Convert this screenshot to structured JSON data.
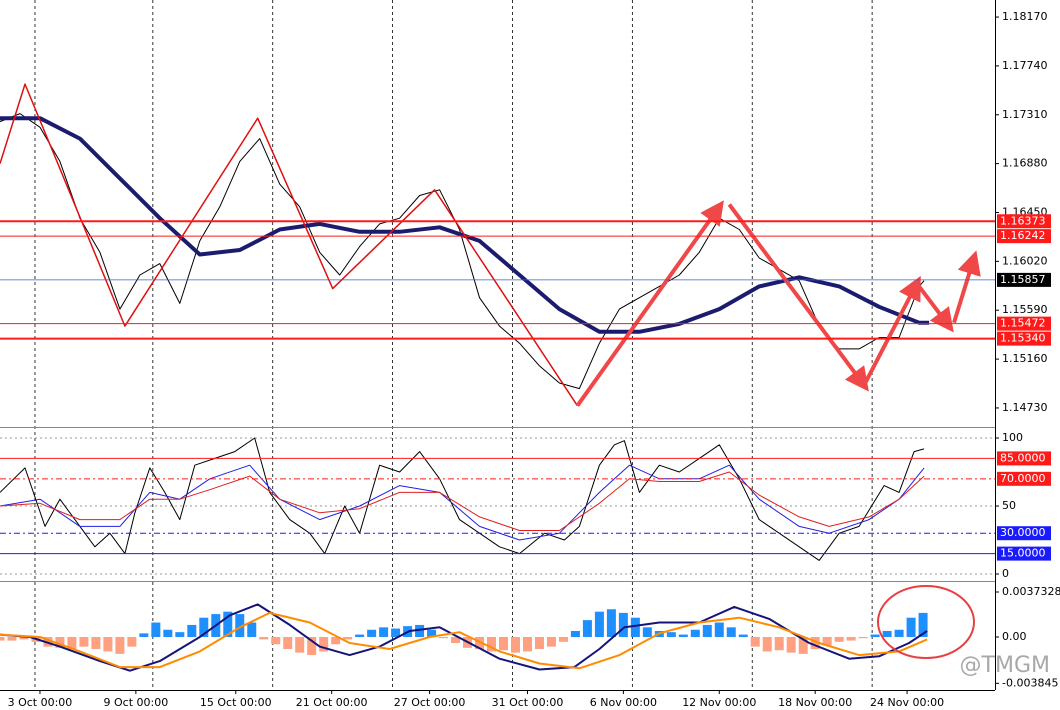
{
  "chart_data": [
    {
      "type": "line",
      "ylim": [
        1.1458,
        1.1832
      ],
      "yticks": [
        {
          "value": 1.1817,
          "label": "1.18170"
        },
        {
          "value": 1.1774,
          "label": "1.17740"
        },
        {
          "value": 1.1731,
          "label": "1.17310"
        },
        {
          "value": 1.1688,
          "label": "1.16880"
        },
        {
          "value": 1.1645,
          "label": "1.16450"
        },
        {
          "value": 1.1602,
          "label": "1.16020"
        },
        {
          "value": 1.1559,
          "label": "1.15590"
        },
        {
          "value": 1.1516,
          "label": "1.15160"
        },
        {
          "value": 1.1473,
          "label": "1.14730"
        }
      ],
      "levels": [
        {
          "value": 1.16373,
          "color": "#ff1a1a",
          "width": 2,
          "box": "#ff1a1a"
        },
        {
          "value": 1.16242,
          "color": "#ff1a1a",
          "width": 1,
          "box": "#ff1a1a"
        },
        {
          "value": 1.15857,
          "color": "#3060d0",
          "width": 0.7,
          "box": "#000000"
        },
        {
          "value": 1.15472,
          "color": "#ff1a1a",
          "width": 1,
          "box": "#ff1a1a"
        },
        {
          "value": 1.1534,
          "label": "1.15340",
          "color": "#ff1a1a",
          "width": 2,
          "box": "#ff1a1a"
        }
      ],
      "series": [
        {
          "color": "#000000",
          "width": 1,
          "x": [
            0,
            5,
            10,
            15,
            20,
            25,
            30,
            35,
            40,
            45,
            50,
            55,
            60,
            65,
            70,
            75,
            80,
            85,
            90,
            95,
            100,
            105,
            110,
            115,
            120,
            125,
            130,
            135,
            140,
            145,
            150,
            155,
            160,
            165,
            170,
            175,
            180,
            185,
            190,
            195,
            200,
            205,
            210,
            215,
            220,
            225,
            230,
            231.25
          ],
          "values": [
            1.1725,
            1.1732,
            1.172,
            1.169,
            1.164,
            1.161,
            1.156,
            1.159,
            1.16,
            1.1565,
            1.162,
            1.165,
            1.169,
            1.171,
            1.167,
            1.165,
            1.161,
            1.159,
            1.1615,
            1.1635,
            1.164,
            1.166,
            1.1665,
            1.163,
            1.157,
            1.1545,
            1.153,
            1.151,
            1.1495,
            1.149,
            1.153,
            1.156,
            1.157,
            1.158,
            1.159,
            1.161,
            1.164,
            1.163,
            1.1605,
            1.1595,
            1.1585,
            1.1545,
            1.1525,
            1.1525,
            1.1535,
            1.1535,
            1.158,
            1.1585
          ]
        },
        {
          "color": "#1c1c6e",
          "width": 4,
          "x": [
            0,
            10,
            20,
            30,
            40,
            50,
            60,
            70,
            80,
            90,
            100,
            110,
            120,
            130,
            140,
            150,
            160,
            170,
            180,
            190,
            200,
            210,
            220,
            230,
            232.5
          ],
          "values": [
            1.1728,
            1.1728,
            1.171,
            1.1675,
            1.164,
            1.1608,
            1.1612,
            1.163,
            1.1635,
            1.1628,
            1.1628,
            1.1632,
            1.162,
            1.159,
            1.156,
            1.154,
            1.154,
            1.1547,
            1.156,
            1.158,
            1.1588,
            1.158,
            1.1562,
            1.1548,
            1.1548
          ]
        },
        {
          "color": "#e01010",
          "width": 1.5,
          "x": [
            0,
            6.25,
            31.25,
            64.5,
            83.25,
            108.75,
            144.5
          ],
          "values": [
            1.1688,
            1.1758,
            1.1545,
            1.1728,
            1.1578,
            1.1665,
            1.1475
          ]
        }
      ],
      "arrows": [
        {
          "x": [
            144.5,
            180
          ],
          "values": [
            1.1475,
            1.165
          ]
        },
        {
          "x": [
            182.5,
            216.25
          ],
          "values": [
            1.1652,
            1.1493
          ]
        },
        {
          "x": [
            216.25,
            229.5
          ],
          "values": [
            1.1493,
            1.1583
          ]
        },
        {
          "x": [
            230,
            237.5
          ],
          "values": [
            1.158,
            1.1545
          ]
        },
        {
          "x": [
            238.75,
            243.75
          ],
          "values": [
            1.1548,
            1.1605
          ]
        }
      ],
      "arrow_color": "#f04848"
    },
    {
      "type": "line",
      "ylim": [
        -4.4,
        105.9
      ],
      "yticks": [
        100,
        50,
        0
      ],
      "grid": true,
      "levels": [
        {
          "value": 85,
          "label": "85.0000",
          "color": "#ff1a1a",
          "width": 1,
          "box": "#ff1a1a"
        },
        {
          "value": 70,
          "label": "70.0000",
          "color": "#ff1a1a",
          "width": 1,
          "dash": "6 3 2 3",
          "box": "#ff1a1a"
        },
        {
          "value": 30,
          "label": "30.0000",
          "color": "#1a1aff",
          "width": 1,
          "dash": "6 3 2 3",
          "box": "#1a1aff"
        },
        {
          "value": 15,
          "label": "15.0000",
          "color": "#1a1aff",
          "width": 1,
          "box": "#1a1aff"
        }
      ],
      "series": [
        {
          "color": "#000000",
          "width": 1,
          "x": [
            0,
            6.25,
            11.25,
            15,
            18.75,
            23.75,
            27.5,
            31.25,
            33.75,
            37.5,
            41.25,
            45,
            48.75,
            53.75,
            58.75,
            63.75,
            67.5,
            72.5,
            77.5,
            81.25,
            86.25,
            90,
            95,
            100,
            105,
            110,
            115,
            120,
            125,
            130,
            136.25,
            141.25,
            145,
            150,
            153.75,
            156.25,
            160,
            165,
            170,
            175,
            180,
            185,
            190,
            195,
            200,
            205,
            210,
            215,
            221.25,
            225,
            228.75,
            231.25
          ],
          "values": [
            60,
            78,
            35,
            55,
            40,
            20,
            30,
            15,
            45,
            78,
            60,
            40,
            80,
            85,
            90,
            100,
            60,
            40,
            30,
            15,
            50,
            30,
            80,
            75,
            90,
            70,
            40,
            30,
            20,
            15,
            30,
            25,
            35,
            80,
            95,
            98,
            60,
            80,
            75,
            85,
            95,
            70,
            40,
            30,
            20,
            10,
            30,
            35,
            65,
            60,
            90,
            92
          ]
        },
        {
          "color": "#2020e0",
          "width": 1,
          "x": [
            0,
            10,
            20,
            30,
            37.5,
            45,
            52.5,
            62.5,
            70,
            80,
            90,
            100,
            110,
            120,
            130,
            140,
            150,
            157.5,
            165,
            175,
            182.5,
            190,
            200,
            207.5,
            217.5,
            225,
            231.25
          ],
          "values": [
            50,
            55,
            35,
            35,
            60,
            55,
            70,
            80,
            55,
            40,
            50,
            65,
            60,
            35,
            25,
            30,
            60,
            80,
            70,
            70,
            80,
            55,
            35,
            30,
            40,
            55,
            78
          ]
        },
        {
          "color": "#e02020",
          "width": 1,
          "x": [
            0,
            10,
            20,
            30,
            37.5,
            45,
            52.5,
            62.5,
            70,
            80,
            90,
            100,
            110,
            120,
            130,
            140,
            150,
            157.5,
            165,
            175,
            182.5,
            190,
            200,
            207.5,
            217.5,
            225,
            231.25
          ],
          "values": [
            50,
            52,
            40,
            40,
            55,
            55,
            62,
            72,
            55,
            45,
            48,
            60,
            60,
            42,
            32,
            32,
            52,
            70,
            68,
            68,
            75,
            58,
            42,
            35,
            42,
            55,
            72
          ]
        }
      ]
    },
    {
      "type": "bar",
      "ylim": [
        -0.0044,
        0.00448
      ],
      "yticks": [
        0.0037328,
        {
          "value": 0,
          "label": "0.00"
        },
        -0.003845
      ],
      "bars": {
        "colors": {
          "up": "#1e8fff",
          "down": "#ffa080"
        },
        "x": [
          0,
          3,
          6,
          9,
          12,
          15,
          18,
          21,
          24,
          27,
          30,
          33,
          36,
          39,
          42,
          45,
          48,
          51,
          54,
          57,
          60,
          63,
          66,
          69,
          72,
          75,
          78,
          81,
          84,
          87,
          90,
          93,
          96,
          99,
          102,
          105,
          108,
          111,
          114,
          117,
          120,
          123,
          126,
          129,
          132,
          135,
          138,
          141,
          144,
          147,
          150,
          153,
          156,
          159,
          162,
          165,
          168,
          171,
          174,
          177,
          180,
          183,
          186,
          189,
          192,
          195,
          198,
          201,
          204,
          207,
          210,
          213,
          216,
          219,
          222,
          225,
          228,
          231
        ],
        "values": [
          -0.0003,
          -0.0003,
          -0.0002,
          -0.0004,
          -0.0008,
          -0.0009,
          -0.001,
          -0.0008,
          -0.001,
          -0.0012,
          -0.0014,
          -0.0008,
          0.0003,
          0.0012,
          0.0006,
          0.0004,
          0.001,
          0.0016,
          0.0019,
          0.0021,
          0.0019,
          0.0012,
          -0.0002,
          -0.0006,
          -0.001,
          -0.0013,
          -0.0015,
          -0.0012,
          -0.0006,
          -0.0002,
          0.0002,
          0.0006,
          0.0008,
          0.0007,
          0.0009,
          0.001,
          0.0006,
          -0.0001,
          -0.0005,
          -0.0009,
          -0.001,
          -0.0012,
          -0.0011,
          -0.0013,
          -0.0012,
          -0.001,
          -0.0008,
          -0.0004,
          0.0005,
          0.0014,
          0.0021,
          0.0023,
          0.002,
          0.0016,
          0.0008,
          0.0005,
          0.0004,
          0.0002,
          0.0006,
          0.001,
          0.0012,
          0.0008,
          0.0002,
          -0.0008,
          -0.0012,
          -0.0011,
          -0.0013,
          -0.0014,
          -0.001,
          -0.0007,
          -0.0004,
          -0.0003,
          -0.0001,
          0.0002,
          0.0005,
          0.0006,
          0.0016,
          0.002
        ]
      },
      "series": [
        {
          "color": "#14147a",
          "width": 2,
          "x": [
            0,
            7.5,
            15,
            25,
            32.5,
            40,
            50,
            57.5,
            64.5,
            72.5,
            80,
            87.5,
            95,
            102.5,
            110,
            117.5,
            125,
            135,
            143.75,
            150,
            156.25,
            165,
            175,
            183.75,
            192.5,
            202.5,
            212.5,
            220,
            227.5,
            232
          ],
          "values": [
            0.0002,
            0,
            -0.0008,
            -0.002,
            -0.0028,
            -0.002,
            0,
            0.0018,
            0.0027,
            0.001,
            -0.0008,
            -0.0015,
            -0.0008,
            0.0005,
            0.0008,
            -0.0005,
            -0.0018,
            -0.0027,
            -0.0025,
            -0.001,
            0.0008,
            0.0012,
            0.0012,
            0.0025,
            0.0015,
            -0.0005,
            -0.0018,
            -0.0016,
            -0.0005,
            0.0005
          ]
        },
        {
          "color": "#ff8c00",
          "width": 2,
          "x": [
            0,
            10,
            20,
            30,
            40,
            50,
            60,
            67.5,
            77.5,
            87.5,
            97.5,
            107.5,
            115,
            125,
            135,
            145,
            155,
            165,
            175,
            185,
            195,
            205,
            215,
            225,
            232
          ],
          "values": [
            0.0002,
            0,
            -0.0012,
            -0.0025,
            -0.0025,
            -0.0012,
            0.0008,
            0.002,
            0.0012,
            -0.0005,
            -0.001,
            0,
            0.0004,
            -0.0012,
            -0.0022,
            -0.0026,
            -0.0015,
            0.0003,
            0.0012,
            0.0016,
            0.0008,
            -0.0005,
            -0.0015,
            -0.0012,
            -0.0002
          ]
        }
      ],
      "xlim": [
        0,
        249
      ],
      "xticks": [
        {
          "value": 10,
          "label": "3 Oct 00:00"
        },
        {
          "value": 34,
          "label": "9 Oct 00:00"
        },
        {
          "value": 59,
          "label": "15 Oct 00:00"
        },
        {
          "value": 83,
          "label": "21 Oct 00:00"
        },
        {
          "value": 107.5,
          "label": "27 Oct 00:00"
        },
        {
          "value": 132,
          "label": "31 Oct 00:00"
        },
        {
          "value": 156,
          "label": "6 Nov 00:00"
        },
        {
          "value": 180,
          "label": "12 Nov 00:00"
        },
        {
          "value": 204,
          "label": "18 Nov 00:00"
        },
        {
          "value": 227,
          "label": "24 Nov 00:00"
        }
      ],
      "xgrid": [
        8.75,
        38.25,
        68.25,
        98.25,
        128.25,
        158.25,
        188.25,
        218.25
      ],
      "watermark": "@TMGM"
    }
  ]
}
